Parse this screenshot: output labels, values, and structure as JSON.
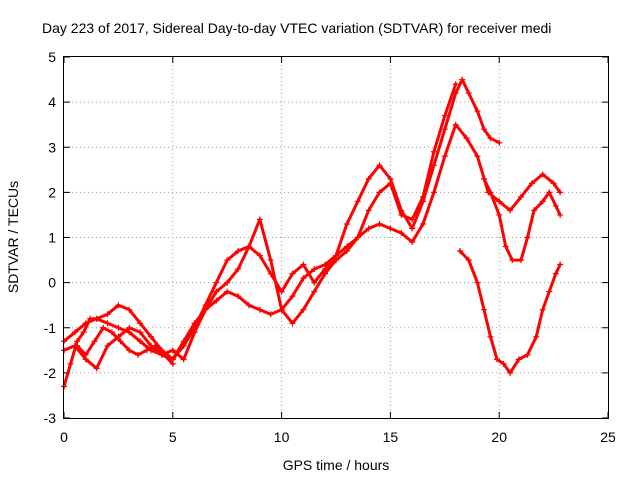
{
  "chart_data": {
    "type": "scatter",
    "title": "Day 223 of 2017, Sidereal Day-to-day VTEC variation (SDTVAR) for receiver medi",
    "xlabel": "GPS time / hours",
    "ylabel": "SDTVAR / TECUs",
    "xlim": [
      0,
      25
    ],
    "ylim": [
      -3,
      5
    ],
    "xticks": [
      "0",
      "5",
      "10",
      "15",
      "20",
      "25"
    ],
    "yticks": [
      "-3",
      "-2",
      "-1",
      "0",
      "1",
      "2",
      "3",
      "4",
      "5"
    ],
    "grid": true,
    "marker": "+",
    "color": "#ff0000",
    "series": [
      {
        "x": [
          0.0,
          0.3,
          0.6,
          0.9,
          1.2,
          1.5,
          2.0,
          2.5,
          3.0,
          3.5,
          4.0,
          4.5,
          5.0,
          5.5,
          6.0,
          6.5,
          7.0,
          7.5,
          8.0,
          8.5,
          9.0,
          9.5,
          10.0,
          10.5,
          11.0,
          11.5,
          12.0,
          12.5,
          13.0,
          13.5,
          14.0,
          14.5,
          15.0,
          15.5,
          16.0,
          16.5,
          17.0,
          17.5,
          18.0,
          18.3,
          18.6,
          19.0,
          19.3,
          19.6,
          20.0
        ],
        "y": [
          -2.3,
          -1.8,
          -1.3,
          -1.1,
          -0.8,
          -0.8,
          -0.7,
          -0.5,
          -0.6,
          -0.9,
          -1.2,
          -1.5,
          -1.7,
          -1.4,
          -1.0,
          -0.5,
          0.0,
          0.5,
          0.7,
          0.8,
          0.6,
          0.2,
          -0.2,
          0.2,
          0.4,
          0.0,
          0.3,
          0.6,
          1.3,
          1.8,
          2.3,
          2.6,
          2.3,
          1.6,
          1.2,
          1.8,
          2.6,
          3.4,
          4.2,
          4.5,
          4.2,
          3.8,
          3.4,
          3.2,
          3.1
        ]
      },
      {
        "x": [
          0.0,
          0.5,
          1.0,
          1.5,
          2.0,
          2.5,
          3.0,
          3.5,
          4.0,
          4.5,
          5.0,
          5.5,
          6.0,
          6.5,
          7.0,
          7.5,
          8.0,
          8.5,
          9.0,
          9.5,
          10.0,
          10.5,
          11.0,
          11.5,
          12.0,
          12.5,
          13.0,
          13.5,
          14.0,
          14.5,
          15.0,
          15.5,
          16.0,
          16.5,
          17.0,
          17.5,
          18.0,
          18.5,
          19.0,
          19.5,
          20.0,
          20.5,
          21.0,
          21.5,
          22.0,
          22.5,
          22.8
        ],
        "y": [
          -1.3,
          -1.1,
          -0.9,
          -0.8,
          -0.9,
          -1.0,
          -1.1,
          -1.3,
          -1.5,
          -1.6,
          -1.7,
          -1.3,
          -0.9,
          -0.6,
          -0.4,
          -0.2,
          -0.3,
          -0.5,
          -0.6,
          -0.7,
          -0.6,
          -0.3,
          0.1,
          0.3,
          0.4,
          0.6,
          0.8,
          1.0,
          1.2,
          1.3,
          1.2,
          1.1,
          0.9,
          1.3,
          2.0,
          2.8,
          3.5,
          3.2,
          2.8,
          2.0,
          1.8,
          1.6,
          1.9,
          2.2,
          2.4,
          2.2,
          2.0
        ]
      },
      {
        "x": [
          0.0,
          0.5,
          1.0,
          1.5,
          2.0,
          2.5,
          3.0,
          3.5,
          4.0,
          4.5,
          5.0,
          5.5,
          6.0,
          6.5,
          7.0,
          7.5,
          8.0,
          8.5,
          9.0,
          9.5,
          10.0,
          10.5,
          11.0,
          11.5,
          12.0,
          12.5,
          13.0,
          13.5,
          14.0,
          14.5,
          15.0,
          15.5,
          16.0,
          16.5,
          17.0,
          17.5,
          18.0
        ],
        "y": [
          -1.5,
          -1.4,
          -1.7,
          -1.9,
          -1.4,
          -1.2,
          -1.0,
          -1.1,
          -1.4,
          -1.6,
          -1.5,
          -1.7,
          -1.1,
          -0.6,
          -0.2,
          0.0,
          0.3,
          0.8,
          1.4,
          0.5,
          -0.6,
          -0.9,
          -0.6,
          -0.2,
          0.2,
          0.5,
          0.7,
          1.0,
          1.6,
          2.0,
          2.2,
          1.5,
          1.4,
          1.9,
          2.9,
          3.7,
          4.4
        ]
      },
      {
        "x": [
          18.2,
          18.6,
          19.0,
          19.3,
          19.6,
          19.9,
          20.2,
          20.5,
          20.9,
          21.3,
          21.7,
          22.0,
          22.3,
          22.6,
          22.8
        ],
        "y": [
          0.7,
          0.5,
          0.0,
          -0.6,
          -1.2,
          -1.7,
          -1.8,
          -2.0,
          -1.7,
          -1.6,
          -1.2,
          -0.6,
          -0.2,
          0.2,
          0.4
        ]
      },
      {
        "x": [
          19.3,
          19.6,
          20.0,
          20.3,
          20.6,
          21.0,
          21.3,
          21.6,
          22.0,
          22.3,
          22.6,
          22.8
        ],
        "y": [
          2.3,
          2.0,
          1.5,
          0.8,
          0.5,
          0.5,
          1.0,
          1.6,
          1.8,
          2.0,
          1.7,
          1.5
        ]
      },
      {
        "x": [
          0.6,
          1.0,
          1.4,
          1.8,
          2.2,
          2.6,
          3.0,
          3.4,
          3.8,
          4.2,
          4.6,
          5.0
        ],
        "y": [
          -1.4,
          -1.6,
          -1.3,
          -1.0,
          -1.1,
          -1.3,
          -1.5,
          -1.6,
          -1.5,
          -1.4,
          -1.6,
          -1.8
        ]
      }
    ]
  }
}
